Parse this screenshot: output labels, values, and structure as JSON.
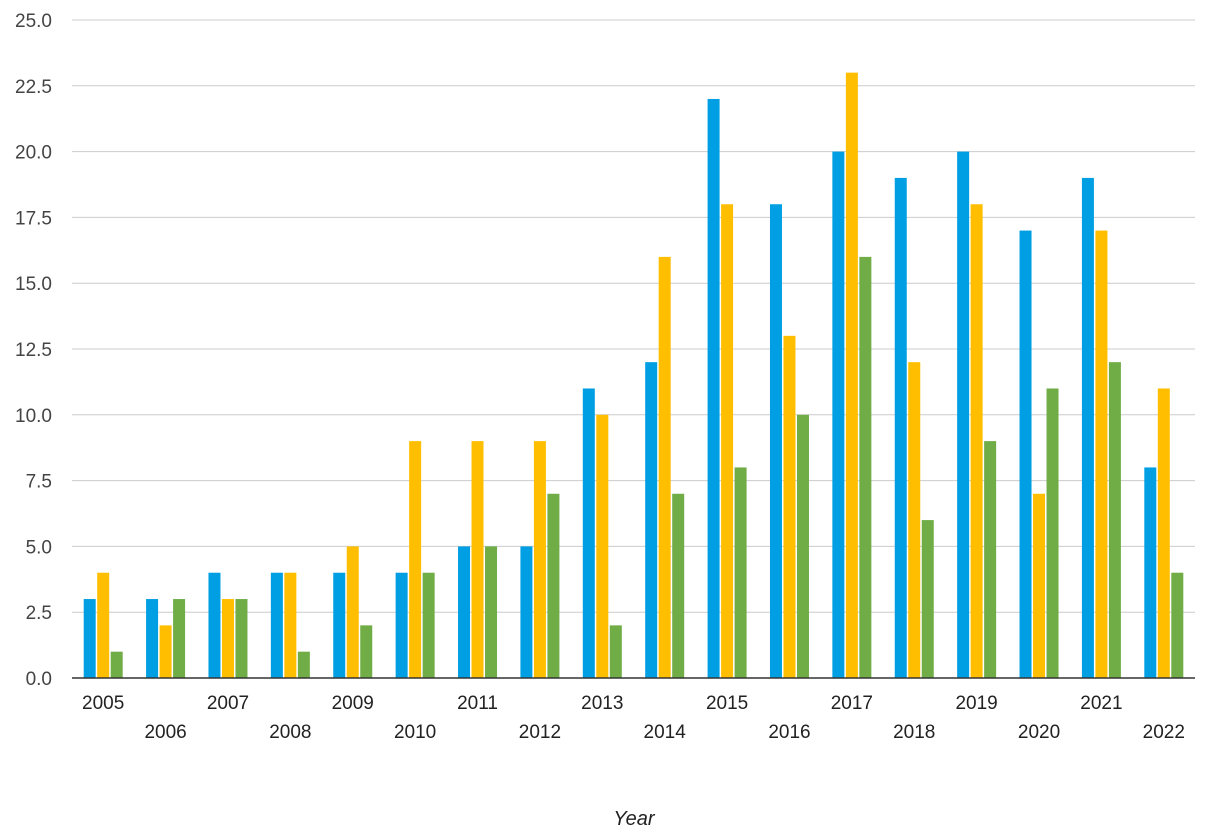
{
  "chart_data": {
    "type": "bar",
    "xlabel": "Year",
    "ylabel": "",
    "ylim": [
      0,
      25
    ],
    "yticks": [
      "0.0",
      "2.5",
      "5.0",
      "7.5",
      "10.0",
      "12.5",
      "15.0",
      "17.5",
      "20.0",
      "22.5",
      "25.0"
    ],
    "grid": true,
    "legend": "none",
    "categories": [
      "2005",
      "2006",
      "2007",
      "2008",
      "2009",
      "2010",
      "2011",
      "2012",
      "2013",
      "2014",
      "2015",
      "2016",
      "2017",
      "2018",
      "2019",
      "2020",
      "2021",
      "2022"
    ],
    "series": [
      {
        "color": "#009fe3",
        "values": [
          3,
          3,
          4,
          4,
          4,
          4,
          5,
          5,
          11,
          12,
          22,
          18,
          20,
          19,
          20,
          17,
          19,
          8
        ]
      },
      {
        "color": "#ffbf00",
        "values": [
          4,
          2,
          3,
          4,
          5,
          9,
          9,
          9,
          10,
          16,
          18,
          13,
          23,
          12,
          18,
          7,
          17,
          11
        ]
      },
      {
        "color": "#70ad47",
        "values": [
          1,
          3,
          3,
          1,
          2,
          4,
          5,
          7,
          2,
          7,
          8,
          10,
          16,
          6,
          9,
          11,
          12,
          4
        ]
      }
    ]
  }
}
